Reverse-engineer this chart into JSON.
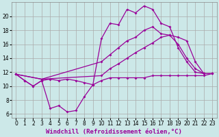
{
  "background_color": "#cce8e8",
  "grid_color": "#aaaaaa",
  "line_color": "#990099",
  "xlabel": "Windchill (Refroidissement éolien,°C)",
  "xlabel_fontsize": 6.5,
  "tick_fontsize": 5.5,
  "ylim": [
    5.5,
    22
  ],
  "xlim": [
    -0.5,
    23.5
  ],
  "yticks": [
    6,
    8,
    10,
    12,
    14,
    16,
    18,
    20
  ],
  "xticks": [
    0,
    1,
    2,
    3,
    4,
    5,
    6,
    7,
    8,
    9,
    10,
    11,
    12,
    13,
    14,
    15,
    16,
    17,
    18,
    19,
    20,
    21,
    22,
    23
  ],
  "series_flat_x": [
    0,
    1,
    2,
    3,
    4,
    5,
    6,
    7,
    8,
    9,
    10,
    11,
    12,
    13,
    14,
    15,
    16,
    17,
    18,
    19,
    20,
    21,
    22,
    23
  ],
  "series_flat_y": [
    11.7,
    10.8,
    10.0,
    10.8,
    11.0,
    10.8,
    11.0,
    10.8,
    10.5,
    10.2,
    10.8,
    11.2,
    11.2,
    11.2,
    11.2,
    11.2,
    11.5,
    11.5,
    11.5,
    11.5,
    11.5,
    11.5,
    11.5,
    11.8
  ],
  "series_jagged_x": [
    0,
    1,
    2,
    3,
    4,
    5,
    6,
    7,
    8,
    9,
    10,
    11,
    12,
    13,
    14,
    15,
    16,
    17,
    18,
    19,
    20,
    21,
    22
  ],
  "series_jagged_y": [
    11.7,
    10.8,
    10.0,
    10.8,
    6.8,
    7.2,
    6.3,
    6.5,
    8.5,
    10.2,
    16.8,
    19.0,
    18.8,
    21.0,
    20.5,
    21.5,
    21.0,
    19.0,
    18.5,
    15.5,
    13.5,
    12.0,
    11.8
  ],
  "series_linear1_x": [
    0,
    3,
    10,
    11,
    12,
    13,
    14,
    15,
    16,
    17,
    18,
    19,
    20,
    21,
    22,
    23
  ],
  "series_linear1_y": [
    11.7,
    11.0,
    13.5,
    14.5,
    15.5,
    16.5,
    17.0,
    18.0,
    18.5,
    17.5,
    17.3,
    16.0,
    14.0,
    12.5,
    11.8,
    11.8
  ],
  "series_linear2_x": [
    0,
    3,
    10,
    11,
    12,
    13,
    14,
    15,
    16,
    17,
    18,
    19,
    20,
    21,
    22,
    23
  ],
  "series_linear2_y": [
    11.7,
    11.0,
    11.5,
    12.5,
    13.2,
    14.0,
    14.8,
    15.5,
    16.2,
    17.0,
    17.3,
    17.0,
    16.5,
    13.5,
    11.8,
    11.8
  ]
}
